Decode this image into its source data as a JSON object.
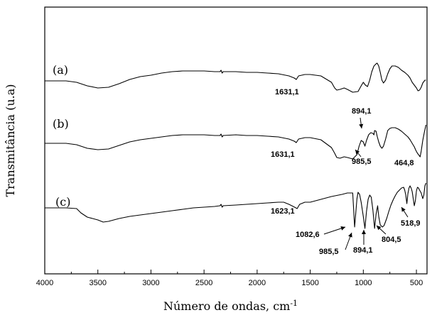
{
  "chart_data": {
    "type": "line",
    "xlabel": "Número de ondas, cm",
    "xlabel_superscript": "-1",
    "ylabel": "Transmitância (u.a)",
    "xlim": [
      4000,
      400
    ],
    "x_ticks": [
      4000,
      3500,
      3000,
      2500,
      2000,
      1500,
      1000,
      500
    ],
    "y_ticks_shown": false,
    "grid": false,
    "legend": "none",
    "series": [
      {
        "name": "(a)",
        "offset": 2.0,
        "points": [
          [
            4000,
            114
          ],
          [
            3800,
            114
          ],
          [
            3700,
            116
          ],
          [
            3600,
            121
          ],
          [
            3500,
            124
          ],
          [
            3400,
            123
          ],
          [
            3300,
            118
          ],
          [
            3200,
            112
          ],
          [
            3100,
            108
          ],
          [
            3000,
            106
          ],
          [
            2900,
            103
          ],
          [
            2800,
            101
          ],
          [
            2700,
            100
          ],
          [
            2600,
            100
          ],
          [
            2500,
            100
          ],
          [
            2400,
            101
          ],
          [
            2350,
            101
          ],
          [
            2340,
            99
          ],
          [
            2330,
            103
          ],
          [
            2320,
            101
          ],
          [
            2200,
            101
          ],
          [
            2100,
            102
          ],
          [
            2000,
            102
          ],
          [
            1900,
            103
          ],
          [
            1800,
            104
          ],
          [
            1700,
            107
          ],
          [
            1650,
            110
          ],
          [
            1631,
            112
          ],
          [
            1610,
            107
          ],
          [
            1550,
            105
          ],
          [
            1500,
            105
          ],
          [
            1400,
            107
          ],
          [
            1300,
            116
          ],
          [
            1270,
            124
          ],
          [
            1250,
            127
          ],
          [
            1220,
            126
          ],
          [
            1180,
            124
          ],
          [
            1150,
            126
          ],
          [
            1100,
            130
          ],
          [
            1050,
            129
          ],
          [
            1020,
            121
          ],
          [
            1000,
            116
          ],
          [
            980,
            120
          ],
          [
            960,
            122
          ],
          [
            940,
            113
          ],
          [
            920,
            101
          ],
          [
            900,
            93
          ],
          [
            880,
            90
          ],
          [
            870,
            89
          ],
          [
            855,
            93
          ],
          [
            840,
            102
          ],
          [
            825,
            113
          ],
          [
            810,
            117
          ],
          [
            790,
            113
          ],
          [
            770,
            104
          ],
          [
            750,
            97
          ],
          [
            730,
            93
          ],
          [
            700,
            93
          ],
          [
            670,
            95
          ],
          [
            640,
            99
          ],
          [
            610,
            102
          ],
          [
            580,
            106
          ],
          [
            560,
            110
          ],
          [
            540,
            116
          ],
          [
            520,
            120
          ],
          [
            500,
            124
          ],
          [
            485,
            128
          ],
          [
            470,
            127
          ],
          [
            455,
            123
          ],
          [
            440,
            117
          ],
          [
            420,
            113
          ],
          [
            410,
            113
          ]
        ]
      },
      {
        "name": "(b)",
        "offset": 1.0,
        "points": [
          [
            4000,
            202
          ],
          [
            3800,
            202
          ],
          [
            3700,
            204
          ],
          [
            3600,
            209
          ],
          [
            3500,
            211
          ],
          [
            3400,
            210
          ],
          [
            3300,
            205
          ],
          [
            3200,
            200
          ],
          [
            3100,
            197
          ],
          [
            3000,
            195
          ],
          [
            2900,
            193
          ],
          [
            2800,
            191
          ],
          [
            2700,
            190
          ],
          [
            2600,
            190
          ],
          [
            2500,
            190
          ],
          [
            2400,
            191
          ],
          [
            2350,
            191
          ],
          [
            2340,
            189
          ],
          [
            2330,
            193
          ],
          [
            2320,
            191
          ],
          [
            2200,
            190
          ],
          [
            2100,
            191
          ],
          [
            2000,
            191
          ],
          [
            1900,
            192
          ],
          [
            1800,
            193
          ],
          [
            1700,
            196
          ],
          [
            1650,
            199
          ],
          [
            1631,
            201
          ],
          [
            1610,
            196
          ],
          [
            1550,
            194
          ],
          [
            1500,
            194
          ],
          [
            1400,
            197
          ],
          [
            1300,
            208
          ],
          [
            1270,
            216
          ],
          [
            1250,
            222
          ],
          [
            1220,
            223
          ],
          [
            1180,
            221
          ],
          [
            1150,
            222
          ],
          [
            1100,
            224
          ],
          [
            1060,
            218
          ],
          [
            1040,
            206
          ],
          [
            1020,
            198
          ],
          [
            1000,
            200
          ],
          [
            985,
            206
          ],
          [
            970,
            198
          ],
          [
            950,
            190
          ],
          [
            930,
            187
          ],
          [
            910,
            188
          ],
          [
            900,
            190
          ],
          [
            894,
            184
          ],
          [
            880,
            185
          ],
          [
            870,
            192
          ],
          [
            855,
            200
          ],
          [
            840,
            206
          ],
          [
            825,
            209
          ],
          [
            810,
            206
          ],
          [
            790,
            196
          ],
          [
            770,
            184
          ],
          [
            750,
            181
          ],
          [
            730,
            180
          ],
          [
            700,
            180
          ],
          [
            670,
            182
          ],
          [
            640,
            185
          ],
          [
            610,
            189
          ],
          [
            580,
            193
          ],
          [
            560,
            197
          ],
          [
            540,
            202
          ],
          [
            520,
            207
          ],
          [
            505,
            212
          ],
          [
            490,
            216
          ],
          [
            475,
            219
          ],
          [
            465,
            221
          ],
          [
            455,
            213
          ],
          [
            440,
            198
          ],
          [
            425,
            186
          ],
          [
            410,
            176
          ]
        ]
      },
      {
        "name": "(c)",
        "offset": 0.0,
        "points": [
          [
            4000,
            293
          ],
          [
            3800,
            293
          ],
          [
            3700,
            294
          ],
          [
            3660,
            300
          ],
          [
            3600,
            306
          ],
          [
            3550,
            308
          ],
          [
            3500,
            310
          ],
          [
            3450,
            313
          ],
          [
            3400,
            312
          ],
          [
            3300,
            308
          ],
          [
            3200,
            305
          ],
          [
            3100,
            303
          ],
          [
            3000,
            301
          ],
          [
            2900,
            299
          ],
          [
            2800,
            297
          ],
          [
            2700,
            295
          ],
          [
            2600,
            293
          ],
          [
            2500,
            292
          ],
          [
            2400,
            291
          ],
          [
            2350,
            290
          ],
          [
            2340,
            288
          ],
          [
            2330,
            292
          ],
          [
            2320,
            290
          ],
          [
            2200,
            289
          ],
          [
            2100,
            288
          ],
          [
            2000,
            287
          ],
          [
            1900,
            286
          ],
          [
            1800,
            285
          ],
          [
            1750,
            285
          ],
          [
            1700,
            288
          ],
          [
            1660,
            291
          ],
          [
            1623,
            294
          ],
          [
            1600,
            288
          ],
          [
            1550,
            285
          ],
          [
            1500,
            285
          ],
          [
            1400,
            281
          ],
          [
            1300,
            277
          ],
          [
            1200,
            274
          ],
          [
            1150,
            272
          ],
          [
            1100,
            272
          ],
          [
            1082,
            320
          ],
          [
            1070,
            298
          ],
          [
            1060,
            280
          ],
          [
            1050,
            271
          ],
          [
            1035,
            274
          ],
          [
            1020,
            285
          ],
          [
            1000,
            305
          ],
          [
            985,
            322
          ],
          [
            970,
            298
          ],
          [
            955,
            281
          ],
          [
            940,
            275
          ],
          [
            925,
            278
          ],
          [
            910,
            296
          ],
          [
            894,
            322
          ],
          [
            880,
            302
          ],
          [
            865,
            290
          ],
          [
            855,
            305
          ],
          [
            840,
            317
          ],
          [
            820,
            320
          ],
          [
            805,
            318
          ],
          [
            780,
            308
          ],
          [
            760,
            298
          ],
          [
            740,
            289
          ],
          [
            720,
            282
          ],
          [
            700,
            276
          ],
          [
            680,
            271
          ],
          [
            660,
            268
          ],
          [
            640,
            265
          ],
          [
            620,
            264
          ],
          [
            610,
            268
          ],
          [
            600,
            275
          ],
          [
            590,
            287
          ],
          [
            580,
            273
          ],
          [
            570,
            265
          ],
          [
            560,
            262
          ],
          [
            550,
            265
          ],
          [
            540,
            270
          ],
          [
            530,
            280
          ],
          [
            520,
            290
          ],
          [
            510,
            283
          ],
          [
            500,
            269
          ],
          [
            490,
            264
          ],
          [
            480,
            265
          ],
          [
            470,
            268
          ],
          [
            455,
            272
          ],
          [
            440,
            280
          ],
          [
            430,
            275
          ],
          [
            420,
            262
          ],
          [
            410,
            258
          ]
        ]
      }
    ],
    "annotations": [
      {
        "text": "1631,1"
      },
      {
        "text": "894,1"
      },
      {
        "text": "985,5"
      },
      {
        "text": "1631,1"
      },
      {
        "text": "464,8"
      },
      {
        "text": "1623,1"
      },
      {
        "text": "1082,6"
      },
      {
        "text": "985,5"
      },
      {
        "text": "894,1"
      },
      {
        "text": "804,5"
      },
      {
        "text": "518,9"
      }
    ]
  }
}
